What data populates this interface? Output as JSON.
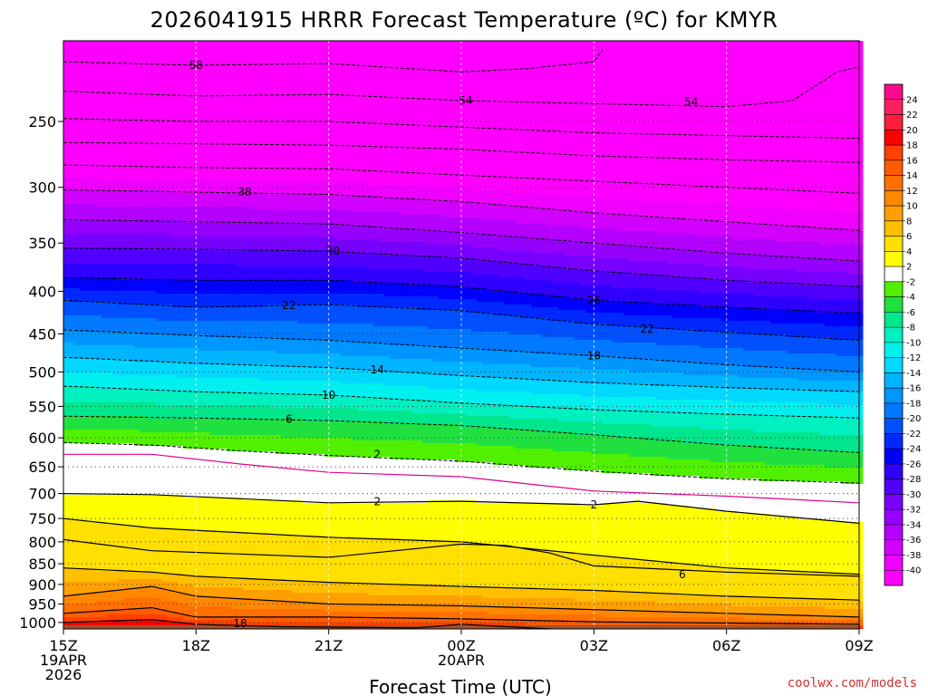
{
  "chart_data": {
    "type": "heatmap",
    "title": "2026041915 HRRR Forecast Temperature (ºC) for KMYR",
    "xlabel": "Forecast Time (UTC)",
    "ylabel": "",
    "x_ticks": [
      {
        "hour": 0,
        "lines": [
          "15Z",
          "19APR",
          "2026"
        ]
      },
      {
        "hour": 3,
        "lines": [
          "18Z"
        ]
      },
      {
        "hour": 6,
        "lines": [
          "21Z"
        ]
      },
      {
        "hour": 9,
        "lines": [
          "00Z",
          "20APR"
        ]
      },
      {
        "hour": 12,
        "lines": [
          "03Z"
        ]
      },
      {
        "hour": 15,
        "lines": [
          "06Z"
        ]
      },
      {
        "hour": 18,
        "lines": [
          "09Z"
        ]
      }
    ],
    "xlim": [
      0,
      18
    ],
    "y_axis": "pressure (hPa), log scale, inverted",
    "ylim": [
      1018,
      200
    ],
    "y_ticks": [
      250,
      300,
      350,
      400,
      450,
      500,
      550,
      600,
      650,
      700,
      750,
      800,
      850,
      900,
      950,
      1000
    ],
    "grid": true,
    "colorbar": {
      "placement": "right",
      "ticks": [
        24,
        22,
        20,
        18,
        16,
        14,
        12,
        10,
        8,
        6,
        4,
        2,
        -2,
        -4,
        -6,
        -8,
        -10,
        -12,
        -14,
        -16,
        -18,
        -20,
        -22,
        -24,
        -26,
        -28,
        -30,
        -32,
        -34,
        -36,
        -38,
        -40
      ],
      "colors": [
        "#ff0a8c",
        "#ff1e60",
        "#ff1e3c",
        "#ff0000",
        "#ff4000",
        "#ff5c00",
        "#ff7000",
        "#ff8800",
        "#ffa000",
        "#ffc000",
        "#ffe000",
        "#ffff00",
        "#ffffff",
        "#50f000",
        "#20e040",
        "#00e68c",
        "#00f0c0",
        "#00f0f0",
        "#00d8ff",
        "#00b4ff",
        "#0096ff",
        "#0078ff",
        "#0050ff",
        "#0028ff",
        "#0000ff",
        "#3000ff",
        "#5000ff",
        "#7800ff",
        "#9600ff",
        "#b400ff",
        "#d200ff",
        "#f000ff",
        "#ff00ff"
      ]
    },
    "profiles": [
      {
        "hour": 0,
        "temp_surface": 21,
        "p_surface": 1013
      },
      {
        "hour": 3,
        "temp_surface": 23,
        "p_surface": 1013
      },
      {
        "hour": 6,
        "temp_surface": 20,
        "p_surface": 1013
      },
      {
        "hour": 9,
        "temp_surface": 19,
        "p_surface": 1013
      },
      {
        "hour": 12,
        "temp_surface": 17,
        "p_surface": 1013
      },
      {
        "hour": 15,
        "temp_surface": 15,
        "p_surface": 1013
      },
      {
        "hour": 18,
        "temp_surface": 14,
        "p_surface": 1013
      }
    ],
    "contour_lines": [
      {
        "value": 18,
        "label": "18",
        "style": "solid",
        "points": [
          [
            0,
            1000
          ],
          [
            2,
            992
          ],
          [
            3,
            1005
          ],
          [
            5,
            1012
          ],
          [
            8,
            1015
          ],
          [
            9,
            1005
          ],
          [
            11,
            1018
          ]
        ]
      },
      {
        "value": 14,
        "label": "",
        "style": "solid",
        "points": [
          [
            0,
            975
          ],
          [
            2,
            960
          ],
          [
            3,
            985
          ],
          [
            6,
            985
          ],
          [
            9,
            990
          ],
          [
            12,
            998
          ],
          [
            18,
            1005
          ]
        ]
      },
      {
        "value": 10,
        "label": "",
        "style": "solid",
        "points": [
          [
            0,
            930
          ],
          [
            2,
            905
          ],
          [
            3,
            930
          ],
          [
            6,
            950
          ],
          [
            9,
            955
          ],
          [
            12,
            965
          ],
          [
            15,
            975
          ],
          [
            18,
            985
          ]
        ]
      },
      {
        "value": 6,
        "label": "6",
        "style": "solid",
        "points": [
          [
            0,
            860
          ],
          [
            2,
            870
          ],
          [
            3,
            880
          ],
          [
            6,
            895
          ],
          [
            9,
            905
          ],
          [
            12,
            915
          ],
          [
            15,
            930
          ],
          [
            18,
            940
          ]
        ]
      },
      {
        "value": 6,
        "label": "",
        "style": "solid",
        "points": [
          [
            0,
            795
          ],
          [
            2,
            820
          ],
          [
            6,
            835
          ],
          [
            9,
            805
          ],
          [
            10,
            808
          ],
          [
            11,
            825
          ],
          [
            12,
            855
          ],
          [
            15,
            870
          ],
          [
            18,
            880
          ]
        ]
      },
      {
        "value": 4,
        "label": "",
        "style": "solid",
        "points": [
          [
            0,
            750
          ],
          [
            2,
            770
          ],
          [
            6,
            790
          ],
          [
            9,
            800
          ],
          [
            12,
            830
          ],
          [
            15,
            860
          ],
          [
            18,
            875
          ]
        ]
      },
      {
        "value": 2,
        "label": "2",
        "style": "solid",
        "points": [
          [
            0,
            700
          ],
          [
            2,
            702
          ],
          [
            4,
            710
          ],
          [
            6,
            718
          ],
          [
            9,
            715
          ],
          [
            12,
            722
          ],
          [
            13,
            715
          ],
          [
            15,
            735
          ],
          [
            18,
            760
          ]
        ]
      },
      {
        "value": 0,
        "label": "",
        "style": "magenta",
        "points": [
          [
            0,
            628
          ],
          [
            2,
            628
          ],
          [
            4,
            645
          ],
          [
            6,
            660
          ],
          [
            9,
            668
          ],
          [
            12,
            695
          ],
          [
            15,
            705
          ],
          [
            18,
            718
          ]
        ]
      },
      {
        "value": -2,
        "label": "2",
        "style": "dashed",
        "points": [
          [
            0,
            608
          ],
          [
            2,
            612
          ],
          [
            4,
            622
          ],
          [
            6,
            630
          ],
          [
            9,
            640
          ],
          [
            12,
            658
          ],
          [
            15,
            672
          ],
          [
            18,
            680
          ]
        ]
      },
      {
        "value": -6,
        "label": "6",
        "style": "dashed",
        "points": [
          [
            0,
            565
          ],
          [
            3,
            568
          ],
          [
            6,
            572
          ],
          [
            9,
            580
          ],
          [
            12,
            595
          ],
          [
            15,
            612
          ],
          [
            18,
            625
          ]
        ]
      },
      {
        "value": -10,
        "label": "10",
        "style": "dashed",
        "points": [
          [
            0,
            520
          ],
          [
            3,
            528
          ],
          [
            6,
            533
          ],
          [
            9,
            545
          ],
          [
            12,
            555
          ],
          [
            15,
            562
          ],
          [
            18,
            568
          ]
        ]
      },
      {
        "value": -14,
        "label": "14",
        "style": "dashed",
        "points": [
          [
            0,
            480
          ],
          [
            3,
            488
          ],
          [
            6,
            494
          ],
          [
            9,
            505
          ],
          [
            12,
            515
          ],
          [
            15,
            522
          ],
          [
            18,
            528
          ]
        ]
      },
      {
        "value": -18,
        "label": "18",
        "style": "dashed",
        "points": [
          [
            0,
            445
          ],
          [
            3,
            452
          ],
          [
            6,
            458
          ],
          [
            9,
            468
          ],
          [
            12,
            478
          ],
          [
            15,
            490
          ],
          [
            18,
            500
          ]
        ]
      },
      {
        "value": -22,
        "label": "22",
        "style": "dashed",
        "points": [
          [
            0,
            410
          ],
          [
            3,
            418
          ],
          [
            6,
            415
          ],
          [
            9,
            422
          ],
          [
            12,
            438
          ],
          [
            15,
            448
          ],
          [
            18,
            458
          ]
        ]
      },
      {
        "value": -26,
        "label": "26",
        "style": "dashed",
        "points": [
          [
            0,
            385
          ],
          [
            3,
            388
          ],
          [
            6,
            388
          ],
          [
            9,
            395
          ],
          [
            12,
            410
          ],
          [
            15,
            418
          ],
          [
            18,
            425
          ]
        ]
      },
      {
        "value": -30,
        "label": "30",
        "style": "dashed",
        "points": [
          [
            0,
            355
          ],
          [
            3,
            356
          ],
          [
            6,
            358
          ],
          [
            9,
            365
          ],
          [
            12,
            378
          ],
          [
            15,
            388
          ],
          [
            18,
            395
          ]
        ]
      },
      {
        "value": -34,
        "label": "",
        "style": "dashed",
        "points": [
          [
            0,
            328
          ],
          [
            3,
            330
          ],
          [
            6,
            332
          ],
          [
            9,
            340
          ],
          [
            12,
            350
          ],
          [
            15,
            360
          ],
          [
            18,
            368
          ]
        ]
      },
      {
        "value": -38,
        "label": "38",
        "style": "dashed",
        "points": [
          [
            0,
            302
          ],
          [
            3,
            304
          ],
          [
            6,
            306
          ],
          [
            9,
            312
          ],
          [
            12,
            322
          ],
          [
            15,
            330
          ],
          [
            18,
            338
          ]
        ]
      },
      {
        "value": -42,
        "label": "",
        "style": "dashed",
        "points": [
          [
            0,
            282
          ],
          [
            3,
            284
          ],
          [
            6,
            285
          ],
          [
            9,
            290
          ],
          [
            12,
            295
          ],
          [
            15,
            300
          ],
          [
            18,
            305
          ]
        ]
      },
      {
        "value": -46,
        "label": "",
        "style": "dashed",
        "points": [
          [
            0,
            265
          ],
          [
            3,
            266
          ],
          [
            6,
            267
          ],
          [
            9,
            270
          ],
          [
            12,
            275
          ],
          [
            15,
            278
          ],
          [
            18,
            280
          ]
        ]
      },
      {
        "value": -50,
        "label": "",
        "style": "dashed",
        "points": [
          [
            0,
            248
          ],
          [
            3,
            250
          ],
          [
            6,
            250
          ],
          [
            9,
            254
          ],
          [
            12,
            258
          ],
          [
            15,
            260
          ],
          [
            18,
            262
          ]
        ]
      },
      {
        "value": -54,
        "label": "54",
        "style": "dashed",
        "points": [
          [
            0,
            230
          ],
          [
            3,
            233
          ],
          [
            6,
            232
          ],
          [
            9,
            236
          ],
          [
            12,
            238
          ],
          [
            15,
            240
          ],
          [
            16.5,
            236
          ],
          [
            17.5,
            218
          ],
          [
            18,
            215
          ]
        ]
      },
      {
        "value": -58,
        "label": "58",
        "style": "dashed",
        "points": [
          [
            0,
            212
          ],
          [
            3,
            214
          ],
          [
            6,
            213
          ],
          [
            9,
            218
          ],
          [
            10.5,
            216
          ],
          [
            12,
            212
          ],
          [
            12.2,
            205
          ]
        ]
      }
    ],
    "contour_label_positions": [
      {
        "text": "58",
        "hour": 3.0,
        "p": 214
      },
      {
        "text": "54",
        "hour": 9.1,
        "p": 236
      },
      {
        "text": "54",
        "hour": 14.2,
        "p": 237
      },
      {
        "text": "38",
        "hour": 4.1,
        "p": 304
      },
      {
        "text": "30",
        "hour": 6.1,
        "p": 358
      },
      {
        "text": "26",
        "hour": 12.0,
        "p": 410
      },
      {
        "text": "22",
        "hour": 5.1,
        "p": 416
      },
      {
        "text": "22",
        "hour": 13.2,
        "p": 444
      },
      {
        "text": "18",
        "hour": 12.0,
        "p": 478
      },
      {
        "text": "14",
        "hour": 7.1,
        "p": 497
      },
      {
        "text": "10",
        "hour": 6.0,
        "p": 533
      },
      {
        "text": "6",
        "hour": 5.1,
        "p": 570
      },
      {
        "text": "2",
        "hour": 7.1,
        "p": 628
      },
      {
        "text": "2",
        "hour": 7.1,
        "p": 716
      },
      {
        "text": "2",
        "hour": 12.0,
        "p": 722
      },
      {
        "text": "6",
        "hour": 14.0,
        "p": 876
      },
      {
        "text": "18",
        "hour": 4.0,
        "p": 1003
      }
    ]
  },
  "credit": "coolwx.com/models"
}
